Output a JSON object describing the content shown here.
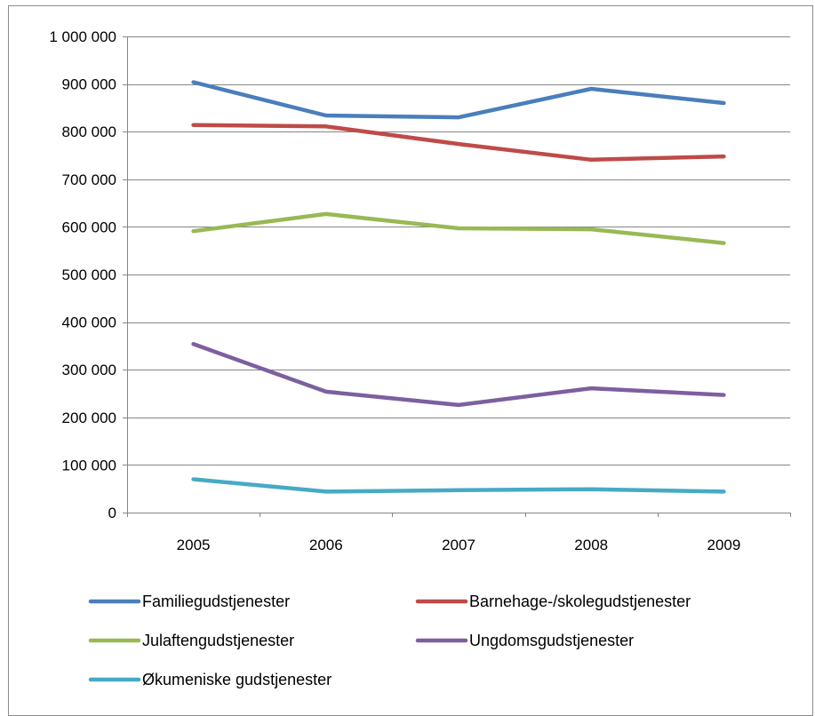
{
  "chart_data": {
    "type": "line",
    "title": "",
    "xlabel": "",
    "ylabel": "",
    "categories": [
      "2005",
      "2006",
      "2007",
      "2008",
      "2009"
    ],
    "ylim": [
      0,
      1000000
    ],
    "y_ticks": [
      0,
      100000,
      200000,
      300000,
      400000,
      500000,
      600000,
      700000,
      800000,
      900000,
      1000000
    ],
    "y_tick_labels": [
      "0",
      "100 000",
      "200 000",
      "300 000",
      "400 000",
      "500 000",
      "600 000",
      "700 000",
      "800 000",
      "900 000",
      "1 000 000"
    ],
    "grid": true,
    "legend_position": "bottom",
    "series": [
      {
        "name": "Familiegudstjenester",
        "color": "#4a7ebb",
        "values": [
          904000,
          834000,
          830000,
          890000,
          860000
        ]
      },
      {
        "name": "Barnehage-/skolegudstjenester",
        "color": "#be4b48",
        "values": [
          814000,
          811000,
          774000,
          741000,
          748000
        ]
      },
      {
        "name": "Julaftengudstjenester",
        "color": "#98b954",
        "values": [
          591000,
          627000,
          597000,
          595000,
          566000
        ]
      },
      {
        "name": "Ungdomsgudstjenester",
        "color": "#7d5fa0",
        "values": [
          354000,
          254000,
          226000,
          261000,
          247000
        ]
      },
      {
        "name": "Økumeniske gudstjenester",
        "color": "#46aac5",
        "values": [
          70000,
          44000,
          47000,
          49000,
          44000
        ]
      }
    ]
  }
}
